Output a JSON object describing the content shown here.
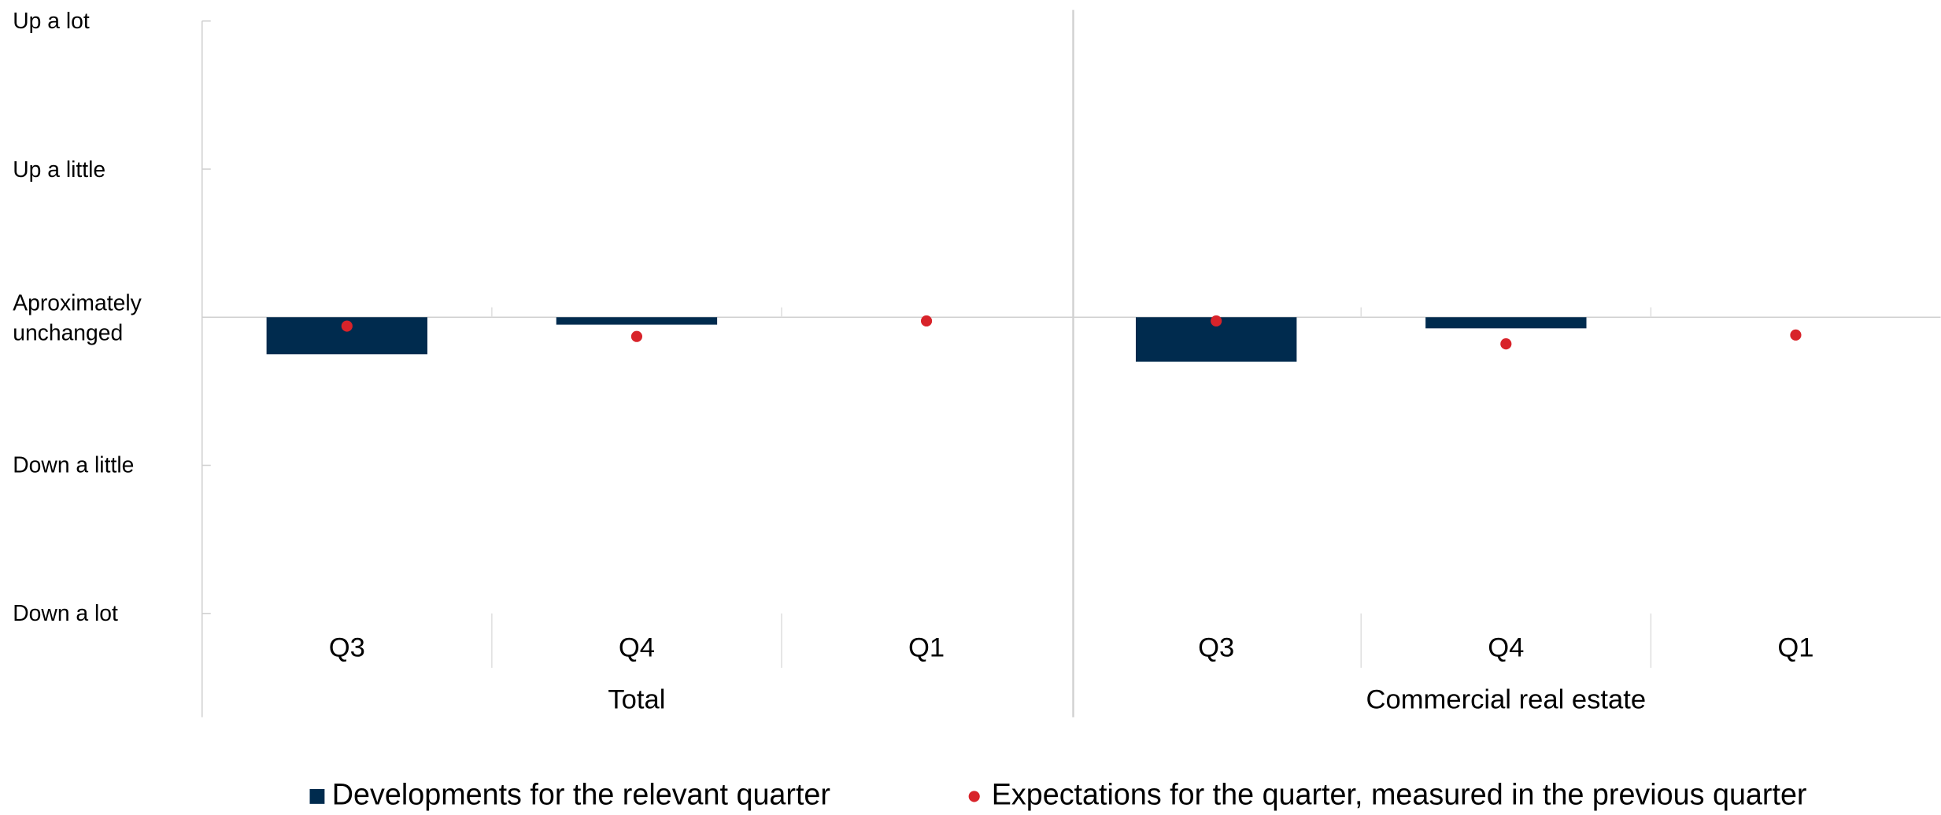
{
  "chart_data": {
    "type": "bar",
    "groups": [
      {
        "name": "Total",
        "categories": [
          "Q3",
          "Q4",
          "Q1"
        ]
      },
      {
        "name": "Commercial real estate",
        "categories": [
          "Q3",
          "Q4",
          "Q1"
        ]
      }
    ],
    "series": [
      {
        "name": "Developments for the relevant quarter",
        "type": "bar",
        "color": "#002b4e",
        "values": [
          -0.25,
          -0.05,
          null,
          -0.3,
          -0.075,
          null
        ]
      },
      {
        "name": "Expectations for the quarter, measured in the previous quarter",
        "type": "scatter",
        "color": "#d8232a",
        "values": [
          -0.06,
          -0.13,
          -0.025,
          -0.025,
          -0.18,
          -0.12
        ]
      }
    ],
    "ylim": [
      -2,
      2
    ],
    "yticks": [
      {
        "value": 2,
        "label": "Up a lot"
      },
      {
        "value": 1,
        "label": "Up a little"
      },
      {
        "value": 0,
        "label": "Aproximately unchanged"
      },
      {
        "value": -1,
        "label": "Down a little"
      },
      {
        "value": -2,
        "label": "Down a lot"
      }
    ],
    "legend": "bottom"
  }
}
